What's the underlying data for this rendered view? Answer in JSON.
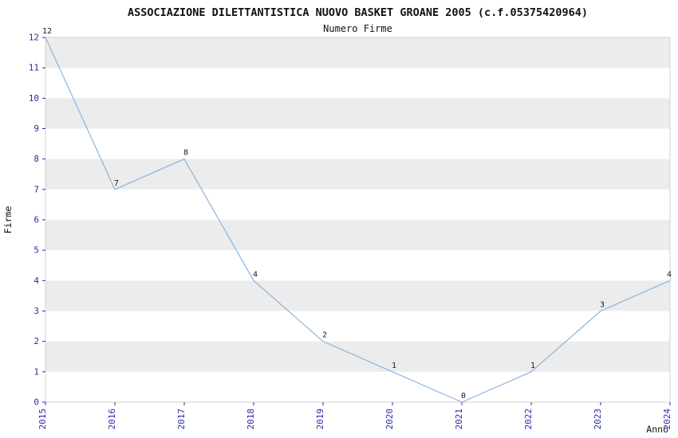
{
  "chart_data": {
    "type": "line",
    "title": "ASSOCIAZIONE DILETTANTISTICA NUOVO BASKET GROANE 2005 (c.f.05375420964)",
    "subtitle": "Numero Firme",
    "xlabel": "Anno",
    "ylabel": "Firme",
    "categories": [
      "2015",
      "2016",
      "2017",
      "2018",
      "2019",
      "2020",
      "2021",
      "2022",
      "2023",
      "2024"
    ],
    "values": [
      12,
      7,
      8,
      4,
      2,
      1,
      0,
      1,
      3,
      4
    ],
    "ylim": [
      0,
      12
    ],
    "ytick_step": 1,
    "grid": "alternating-horizontal-bands",
    "legend": "none",
    "colors": {
      "line": "#8ab4e0",
      "band": "#ececec",
      "frame": "#d0d0d0",
      "tick_label": "#2b2baa",
      "point_label": "#1a1a1a",
      "title": "#111111"
    }
  }
}
